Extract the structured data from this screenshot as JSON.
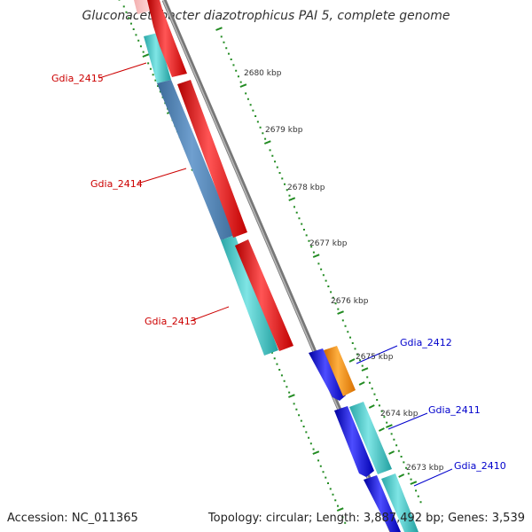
{
  "title": "Gluconacetobacter diazotrophicus PAI 5, complete genome",
  "footer": {
    "accession": "Accession: NC_011365",
    "topology": "Topology: circular; Length: 3,887,492 bp; Genes: 3,539"
  },
  "ruler": {
    "unit": "kbp",
    "labels": [
      "2680 kbp",
      "2679 kbp",
      "2678 kbp",
      "2677 kbp",
      "2676 kbp",
      "2675 kbp",
      "2674 kbp",
      "2673 kbp"
    ]
  },
  "genes": [
    {
      "name": "Gdia_2415",
      "strand": "reverse"
    },
    {
      "name": "Gdia_2414",
      "strand": "reverse"
    },
    {
      "name": "Gdia_2413",
      "strand": "reverse"
    },
    {
      "name": "Gdia_2412",
      "strand": "forward"
    },
    {
      "name": "Gdia_2411",
      "strand": "forward"
    },
    {
      "name": "Gdia_2410",
      "strand": "forward"
    }
  ],
  "colors": {
    "reverse_label": "#cc0000",
    "forward_label": "#0000cc",
    "backbone": "#888888",
    "ticks": "#228b22",
    "cds_reverse": "#ee0000",
    "cds_forward": "#0000ee",
    "gene_cyan": "#33cccc",
    "gene_steel": "#4f81b4",
    "gene_orange": "#ff8c00"
  }
}
